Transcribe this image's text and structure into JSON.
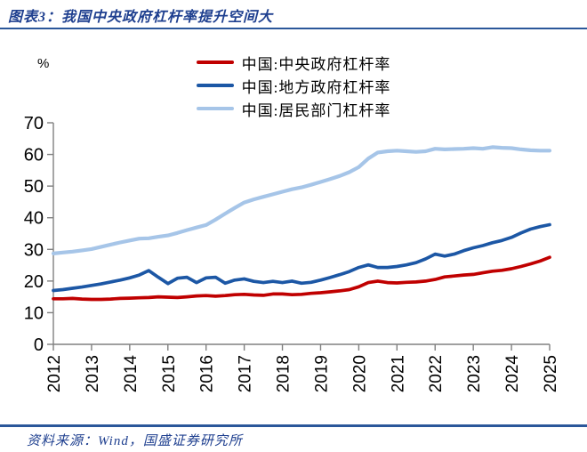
{
  "header": {
    "title": "图表3：我国中央政府杠杆率提升空间大"
  },
  "footer": {
    "source": "资料来源：Wind，国盛证券研究所"
  },
  "chart_data": {
    "type": "line",
    "title": "图表3：我国中央政府杠杆率提升空间大",
    "unit_label": "%",
    "legend_position": "top",
    "grid": false,
    "xlim": [
      2012,
      2025
    ],
    "ylim": [
      0,
      70
    ],
    "y_ticks": [
      0,
      10,
      20,
      30,
      40,
      50,
      60,
      70
    ],
    "x_tick_labels": [
      "2012",
      "2013",
      "2014",
      "2015",
      "2016",
      "2017",
      "2018",
      "2019",
      "2020",
      "2021",
      "2022",
      "2023",
      "2024",
      "2025"
    ],
    "x_start": 2012,
    "x_step": 0.25,
    "axis_color": "#808080",
    "series": [
      {
        "name": "中国:中央政府杠杆率",
        "color": "#C00000",
        "values": [
          14.4,
          14.4,
          14.5,
          14.3,
          14.2,
          14.2,
          14.3,
          14.5,
          14.6,
          14.7,
          14.8,
          15.0,
          14.9,
          14.8,
          15.0,
          15.3,
          15.4,
          15.2,
          15.4,
          15.7,
          15.8,
          15.6,
          15.5,
          15.9,
          15.9,
          15.7,
          15.8,
          16.1,
          16.3,
          16.6,
          16.9,
          17.3,
          18.2,
          19.5,
          20.0,
          19.5,
          19.4,
          19.6,
          19.7,
          20.0,
          20.5,
          21.3,
          21.6,
          21.9,
          22.1,
          22.6,
          23.1,
          23.4,
          23.9,
          24.6,
          25.4,
          26.3,
          27.5
        ]
      },
      {
        "name": "中国:地方政府杠杆率",
        "color": "#1C57A5",
        "values": [
          17.0,
          17.3,
          17.7,
          18.1,
          18.6,
          19.1,
          19.7,
          20.3,
          21.0,
          21.9,
          23.3,
          21.2,
          19.2,
          20.9,
          21.2,
          19.5,
          21.0,
          21.2,
          19.3,
          20.3,
          20.7,
          19.9,
          19.5,
          19.9,
          19.5,
          20.0,
          19.3,
          19.6,
          20.3,
          21.1,
          22.0,
          23.0,
          24.3,
          25.1,
          24.3,
          24.3,
          24.6,
          25.1,
          25.8,
          27.0,
          28.5,
          27.9,
          28.5,
          29.6,
          30.5,
          31.2,
          32.1,
          32.8,
          33.8,
          35.2,
          36.4,
          37.2,
          37.8
        ]
      },
      {
        "name": "中国:居民部门杠杆率",
        "color": "#A6C5E8",
        "values": [
          28.7,
          29.0,
          29.3,
          29.7,
          30.1,
          30.8,
          31.5,
          32.2,
          32.8,
          33.4,
          33.5,
          34.0,
          34.4,
          35.2,
          36.1,
          36.9,
          37.7,
          39.4,
          41.3,
          43.1,
          44.8,
          45.8,
          46.6,
          47.4,
          48.2,
          49.0,
          49.6,
          50.4,
          51.3,
          52.2,
          53.2,
          54.4,
          56.0,
          58.7,
          60.6,
          61.0,
          61.2,
          61.0,
          60.8,
          61.0,
          61.8,
          61.6,
          61.7,
          61.8,
          62.0,
          61.8,
          62.3,
          62.1,
          62.0,
          61.6,
          61.3,
          61.2,
          61.2
        ]
      }
    ]
  }
}
